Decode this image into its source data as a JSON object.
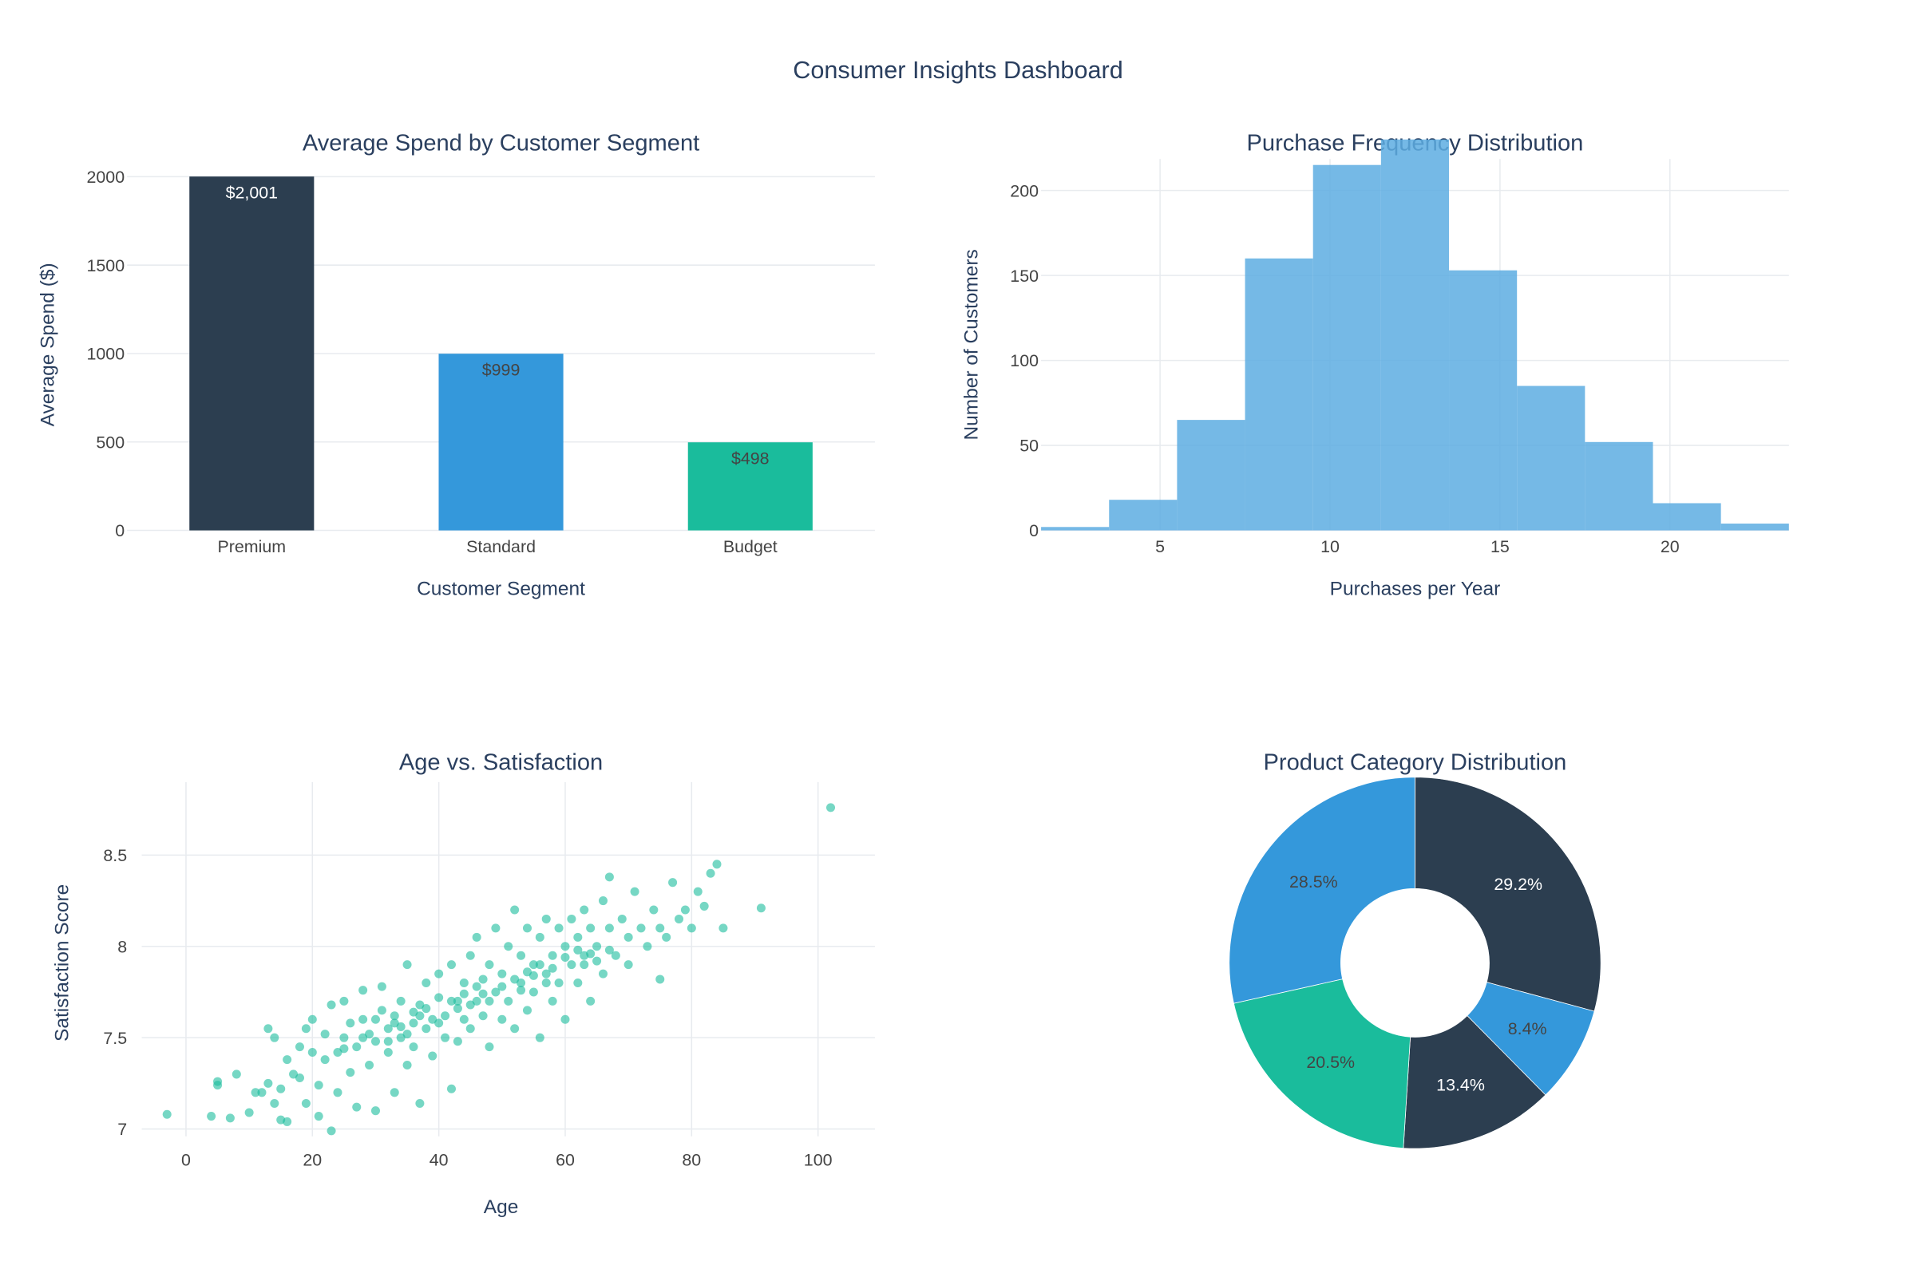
{
  "dashboard": {
    "title": "Consumer Insights Dashboard"
  },
  "colors": {
    "dark": "#2c3e50",
    "blue": "#3498db",
    "teal": "#1abc9c",
    "hist": "#5dade2",
    "grid": "#e8ebef",
    "text": "#2a3f5f",
    "tick": "#444444"
  },
  "chart_data": [
    {
      "type": "bar",
      "title": "Average Spend by Customer Segment",
      "xlabel": "Customer Segment",
      "ylabel": "Average Spend ($)",
      "categories": [
        "Premium",
        "Standard",
        "Budget"
      ],
      "values": [
        2001,
        999,
        498
      ],
      "data_labels": [
        "$2,001",
        "$999",
        "$498"
      ],
      "bar_colors": [
        "#2c3e50",
        "#3498db",
        "#1abc9c"
      ],
      "label_colors": [
        "#ffffff",
        "#444444",
        "#444444"
      ],
      "ylim": [
        0,
        2100
      ],
      "yticks": [
        0,
        500,
        1000,
        1500,
        2000
      ],
      "ytick_labels": [
        "0",
        "500",
        "1000",
        "1500",
        "2000"
      ],
      "grid": true
    },
    {
      "type": "bar",
      "subtype": "histogram",
      "title": "Purchase Frequency Distribution",
      "xlabel": "Purchases per Year",
      "ylabel": "Number of Customers",
      "bin_edges": [
        1.5,
        3.5,
        5.5,
        7.5,
        9.5,
        11.5,
        13.5,
        15.5,
        17.5,
        19.5,
        21.5,
        23.5
      ],
      "counts": [
        2,
        18,
        65,
        160,
        215,
        230,
        153,
        85,
        52,
        16,
        4
      ],
      "xlim": [
        1.5,
        23.5
      ],
      "xticks": [
        5,
        10,
        15,
        20
      ],
      "xtick_labels": [
        "5",
        "10",
        "15",
        "20"
      ],
      "ylim": [
        0,
        230
      ],
      "yticks": [
        0,
        50,
        100,
        150,
        200
      ],
      "ytick_labels": [
        "0",
        "50",
        "100",
        "150",
        "200"
      ],
      "grid": true
    },
    {
      "type": "scatter",
      "title": "Age vs. Satisfaction",
      "xlabel": "Age",
      "ylabel": "Satisfaction Score",
      "xlim": [
        -7,
        109
      ],
      "ylim": [
        6.96,
        8.9
      ],
      "xticks": [
        0,
        20,
        40,
        60,
        80,
        100
      ],
      "xtick_labels": [
        "0",
        "20",
        "40",
        "60",
        "80",
        "100"
      ],
      "yticks": [
        7,
        7.5,
        8,
        8.5
      ],
      "ytick_labels": [
        "7",
        "7.5",
        "8",
        "8.5"
      ],
      "grid": true,
      "points": [
        [
          -3,
          7.08
        ],
        [
          4,
          7.07
        ],
        [
          5,
          7.26
        ],
        [
          5,
          7.24
        ],
        [
          7,
          7.06
        ],
        [
          8,
          7.3
        ],
        [
          10,
          7.09
        ],
        [
          11,
          7.2
        ],
        [
          12,
          7.2
        ],
        [
          13,
          7.25
        ],
        [
          13,
          7.55
        ],
        [
          14,
          7.5
        ],
        [
          14,
          7.14
        ],
        [
          15,
          7.05
        ],
        [
          15,
          7.22
        ],
        [
          16,
          7.04
        ],
        [
          16,
          7.38
        ],
        [
          17,
          7.3
        ],
        [
          18,
          7.45
        ],
        [
          18,
          7.28
        ],
        [
          19,
          7.55
        ],
        [
          19,
          7.14
        ],
        [
          20,
          7.42
        ],
        [
          20,
          7.6
        ],
        [
          21,
          7.24
        ],
        [
          21,
          7.07
        ],
        [
          22,
          7.38
        ],
        [
          22,
          7.52
        ],
        [
          23,
          7.68
        ],
        [
          23,
          6.99
        ],
        [
          24,
          7.42
        ],
        [
          24,
          7.2
        ],
        [
          25,
          7.5
        ],
        [
          25,
          7.7
        ],
        [
          26,
          7.31
        ],
        [
          26,
          7.58
        ],
        [
          27,
          7.45
        ],
        [
          27,
          7.12
        ],
        [
          28,
          7.6
        ],
        [
          28,
          7.76
        ],
        [
          29,
          7.35
        ],
        [
          29,
          7.52
        ],
        [
          30,
          7.1
        ],
        [
          30,
          7.48
        ],
        [
          31,
          7.65
        ],
        [
          31,
          7.78
        ],
        [
          32,
          7.42
        ],
        [
          32,
          7.55
        ],
        [
          33,
          7.2
        ],
        [
          33,
          7.62
        ],
        [
          34,
          7.5
        ],
        [
          34,
          7.7
        ],
        [
          35,
          7.9
        ],
        [
          35,
          7.35
        ],
        [
          36,
          7.58
        ],
        [
          36,
          7.45
        ],
        [
          37,
          7.68
        ],
        [
          37,
          7.14
        ],
        [
          38,
          7.8
        ],
        [
          38,
          7.55
        ],
        [
          39,
          7.6
        ],
        [
          39,
          7.4
        ],
        [
          40,
          7.72
        ],
        [
          40,
          7.85
        ],
        [
          41,
          7.5
        ],
        [
          41,
          7.62
        ],
        [
          42,
          7.22
        ],
        [
          42,
          7.9
        ],
        [
          43,
          7.7
        ],
        [
          43,
          7.48
        ],
        [
          44,
          7.8
        ],
        [
          44,
          7.6
        ],
        [
          45,
          7.95
        ],
        [
          45,
          7.55
        ],
        [
          46,
          7.7
        ],
        [
          46,
          8.05
        ],
        [
          47,
          7.62
        ],
        [
          47,
          7.82
        ],
        [
          48,
          7.45
        ],
        [
          48,
          7.9
        ],
        [
          49,
          7.75
        ],
        [
          49,
          8.1
        ],
        [
          50,
          7.6
        ],
        [
          50,
          7.85
        ],
        [
          51,
          8.0
        ],
        [
          51,
          7.7
        ],
        [
          52,
          7.55
        ],
        [
          52,
          8.2
        ],
        [
          53,
          7.8
        ],
        [
          53,
          7.95
        ],
        [
          54,
          7.65
        ],
        [
          54,
          8.1
        ],
        [
          55,
          7.9
        ],
        [
          55,
          7.75
        ],
        [
          56,
          8.05
        ],
        [
          56,
          7.5
        ],
        [
          57,
          8.15
        ],
        [
          57,
          7.85
        ],
        [
          58,
          7.95
        ],
        [
          58,
          7.7
        ],
        [
          59,
          8.1
        ],
        [
          59,
          7.8
        ],
        [
          60,
          8.0
        ],
        [
          60,
          7.6
        ],
        [
          61,
          8.15
        ],
        [
          61,
          7.9
        ],
        [
          62,
          7.8
        ],
        [
          62,
          8.05
        ],
        [
          63,
          7.95
        ],
        [
          63,
          8.2
        ],
        [
          64,
          7.7
        ],
        [
          64,
          8.1
        ],
        [
          65,
          8.0
        ],
        [
          66,
          7.85
        ],
        [
          66,
          8.25
        ],
        [
          67,
          8.38
        ],
        [
          67,
          8.1
        ],
        [
          68,
          7.95
        ],
        [
          69,
          8.15
        ],
        [
          70,
          8.05
        ],
        [
          70,
          7.9
        ],
        [
          71,
          8.3
        ],
        [
          72,
          8.1
        ],
        [
          73,
          8.0
        ],
        [
          74,
          8.2
        ],
        [
          75,
          7.82
        ],
        [
          75,
          8.1
        ],
        [
          76,
          8.05
        ],
        [
          77,
          8.35
        ],
        [
          78,
          8.15
        ],
        [
          79,
          8.2
        ],
        [
          80,
          8.1
        ],
        [
          81,
          8.3
        ],
        [
          82,
          8.22
        ],
        [
          83,
          8.4
        ],
        [
          84,
          8.45
        ],
        [
          85,
          8.1
        ],
        [
          91,
          8.21
        ],
        [
          102,
          8.76
        ],
        [
          30,
          7.6
        ],
        [
          32,
          7.48
        ],
        [
          34,
          7.56
        ],
        [
          36,
          7.64
        ],
        [
          38,
          7.66
        ],
        [
          40,
          7.58
        ],
        [
          42,
          7.7
        ],
        [
          44,
          7.74
        ],
        [
          46,
          7.78
        ],
        [
          48,
          7.7
        ],
        [
          50,
          7.78
        ],
        [
          52,
          7.82
        ],
        [
          54,
          7.86
        ],
        [
          56,
          7.9
        ],
        [
          58,
          7.88
        ],
        [
          60,
          7.94
        ],
        [
          62,
          7.98
        ],
        [
          64,
          7.96
        ],
        [
          35,
          7.52
        ],
        [
          45,
          7.68
        ],
        [
          55,
          7.84
        ],
        [
          65,
          7.92
        ],
        [
          25,
          7.44
        ],
        [
          28,
          7.5
        ],
        [
          33,
          7.58
        ],
        [
          37,
          7.62
        ],
        [
          43,
          7.66
        ],
        [
          47,
          7.74
        ],
        [
          53,
          7.76
        ],
        [
          57,
          7.8
        ],
        [
          63,
          7.9
        ],
        [
          67,
          7.98
        ]
      ]
    },
    {
      "type": "pie",
      "title": "Product Category Distribution",
      "hole": 0.4,
      "slices": [
        {
          "value": 29.2,
          "label": "29.2%",
          "color": "#2c3e50",
          "text_color": "#ffffff"
        },
        {
          "value": 8.4,
          "label": "8.4%",
          "color": "#3498db",
          "text_color": "#444444"
        },
        {
          "value": 13.4,
          "label": "13.4%",
          "color": "#2c3e50",
          "text_color": "#ffffff"
        },
        {
          "value": 20.5,
          "label": "20.5%",
          "color": "#1abc9c",
          "text_color": "#444444"
        },
        {
          "value": 28.5,
          "label": "28.5%",
          "color": "#3498db",
          "text_color": "#444444"
        }
      ]
    }
  ]
}
